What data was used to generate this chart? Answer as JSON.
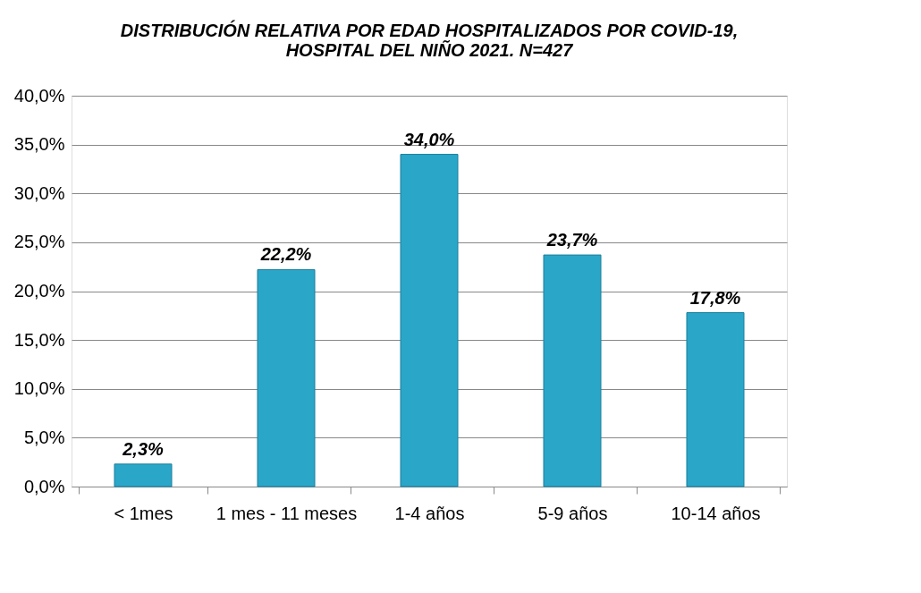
{
  "chart_data": {
    "type": "bar",
    "title": "DISTRIBUCIÓN RELATIVA POR EDAD HOSPITALIZADOS POR COVID-19,\nHOSPITAL DEL NIÑO 2021. N=427",
    "categories": [
      "< 1mes",
      "1 mes - 11 meses",
      "1-4 años",
      "5-9 años",
      "10-14 años"
    ],
    "values": [
      2.3,
      22.2,
      34.0,
      23.7,
      17.8
    ],
    "value_labels": [
      "2,3%",
      "22,2%",
      "34,0%",
      "23,7%",
      "17,8%"
    ],
    "color": "#2aa6c8",
    "ylim": [
      0,
      40
    ],
    "yticks": [
      {
        "value": 0,
        "label": "0,0%"
      },
      {
        "value": 5,
        "label": "5,0%"
      },
      {
        "value": 10,
        "label": "10,0%"
      },
      {
        "value": 15,
        "label": "15,0%"
      },
      {
        "value": 20,
        "label": "20,0%"
      },
      {
        "value": 25,
        "label": "25,0%"
      },
      {
        "value": 30,
        "label": "30,0%"
      },
      {
        "value": 35,
        "label": "35,0%"
      },
      {
        "value": 40,
        "label": "40,0%"
      }
    ],
    "grid": "y"
  }
}
